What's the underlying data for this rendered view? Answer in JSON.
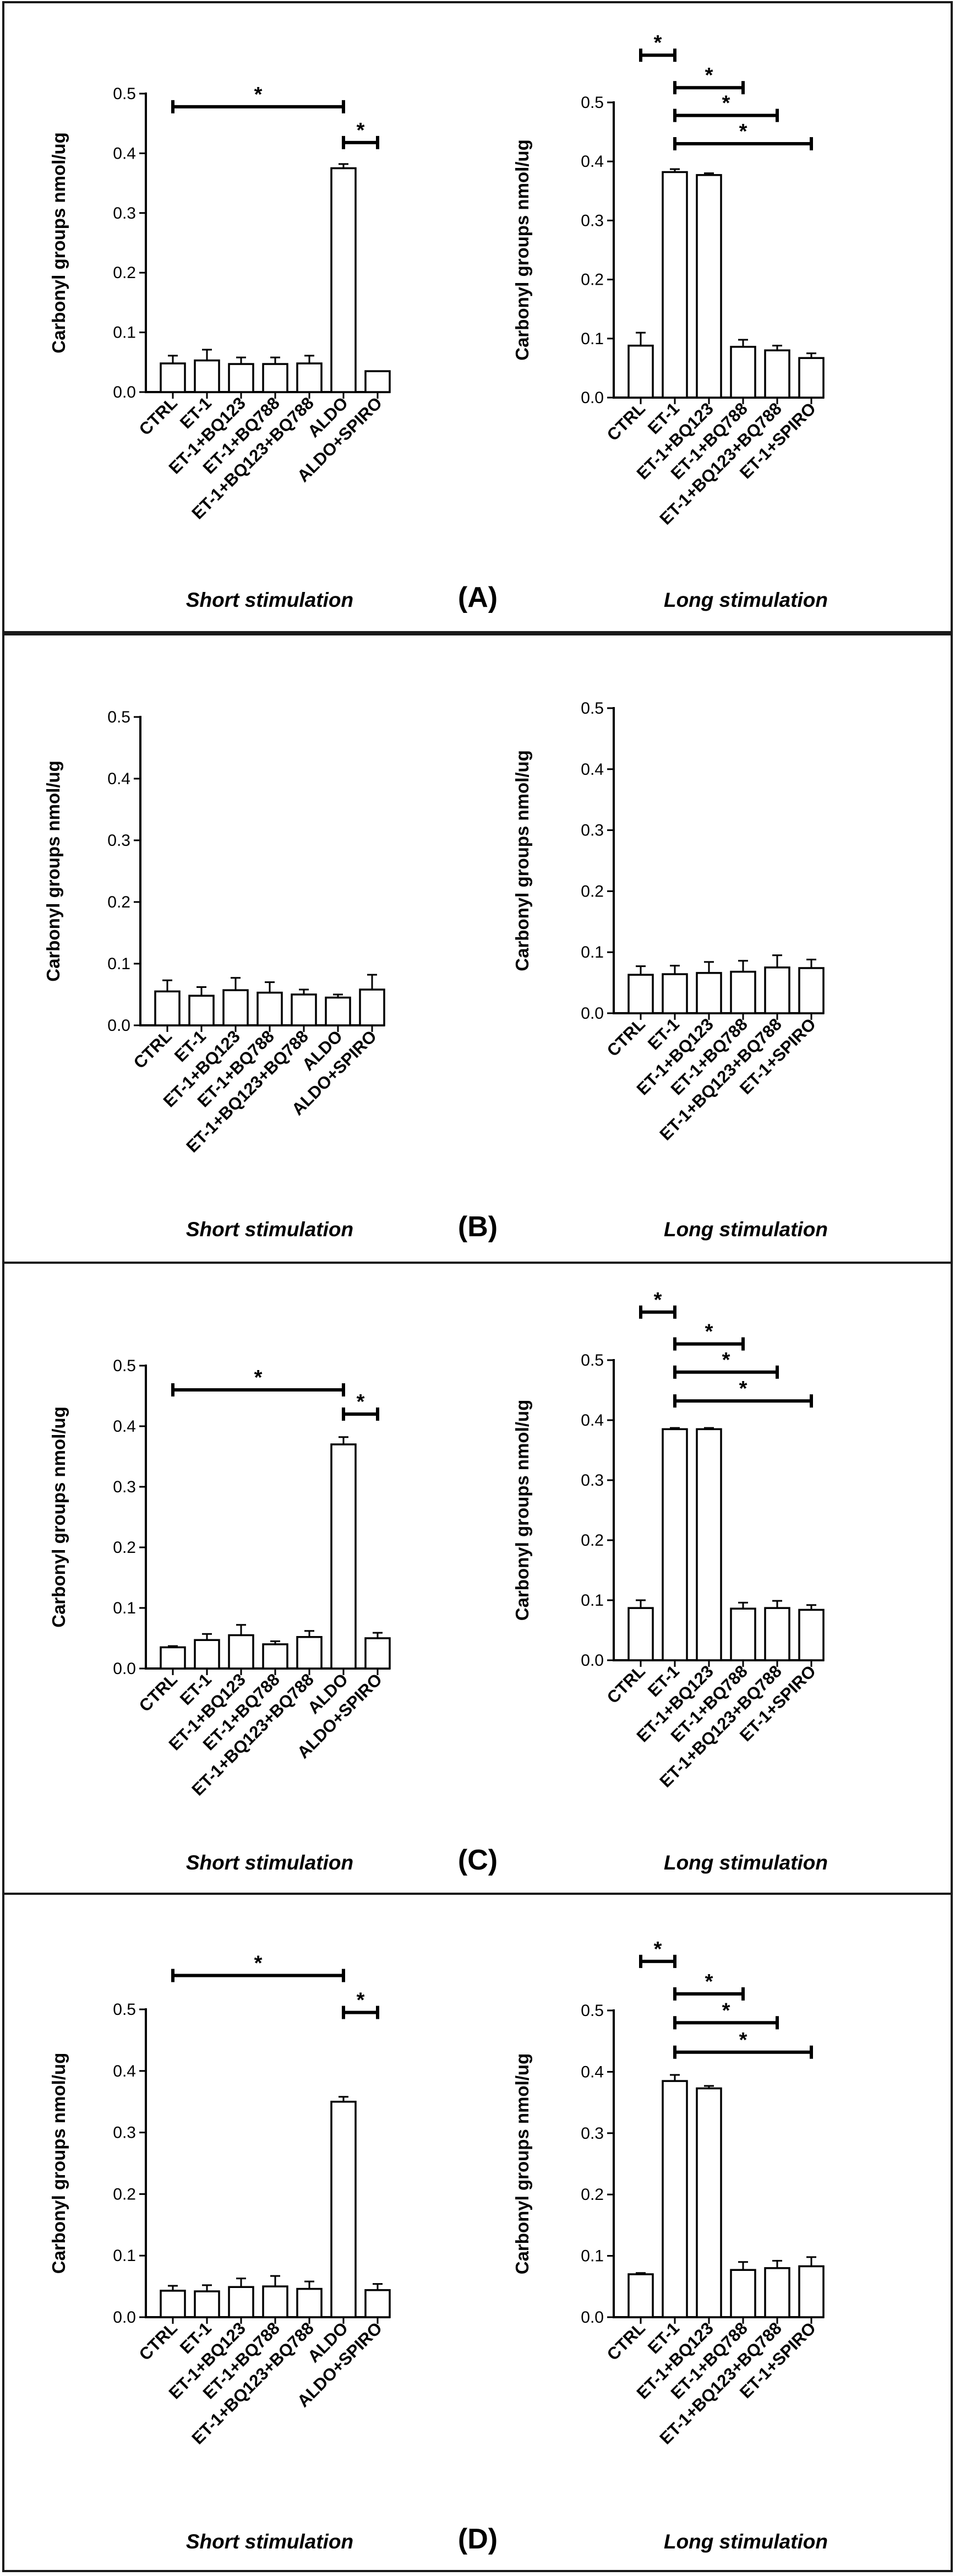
{
  "chart_data": [
    {
      "panel": "(A)",
      "charts": [
        {
          "type": "bar",
          "caption": "Short stimulation",
          "ylabel": "Carbonyl groups nmol/ug",
          "ylim": [
            0,
            0.5
          ],
          "yticks": [
            "0.0",
            "0.1",
            "0.2",
            "0.3",
            "0.4",
            "0.5"
          ],
          "categories": [
            "CTRL",
            "ET-1",
            "ET-1+BQ123",
            "ET-1+BQ788",
            "ET-1+BQ123+BQ788",
            "ALDO",
            "ALDO+SPIRO"
          ],
          "values": [
            0.048,
            0.053,
            0.047,
            0.047,
            0.048,
            0.375,
            0.035
          ],
          "errors": [
            0.013,
            0.018,
            0.011,
            0.011,
            0.013,
            0.007,
            0.0
          ],
          "significance": [
            {
              "from": 0,
              "to": 5,
              "y": 0.478,
              "label": "*"
            },
            {
              "from": 5,
              "to": 6,
              "y": 0.418,
              "label": "*"
            }
          ]
        },
        {
          "type": "bar",
          "caption": "Long stimulation",
          "ylabel": "Carbonyl groups nmol/ug",
          "ylim": [
            0,
            0.5
          ],
          "yticks": [
            "0.0",
            "0.1",
            "0.2",
            "0.3",
            "0.4",
            "0.5"
          ],
          "categories": [
            "CTRL",
            "ET-1",
            "ET-1+BQ123",
            "ET-1+BQ788",
            "ET-1+BQ123+BQ788",
            "ET-1+SPIRO"
          ],
          "values": [
            0.088,
            0.382,
            0.377,
            0.086,
            0.08,
            0.067
          ],
          "errors": [
            0.022,
            0.005,
            0.003,
            0.012,
            0.008,
            0.008
          ],
          "significance": [
            {
              "from": 0,
              "to": 1,
              "y": 0.58,
              "label": "*"
            },
            {
              "from": 1,
              "to": 3,
              "y": 0.525,
              "label": "*"
            },
            {
              "from": 1,
              "to": 4,
              "y": 0.478,
              "label": "*"
            },
            {
              "from": 1,
              "to": 5,
              "y": 0.43,
              "label": "*"
            }
          ]
        }
      ]
    },
    {
      "panel": "(B)",
      "charts": [
        {
          "type": "bar",
          "caption": "Short stimulation",
          "ylabel": "Carbonyl groups nmol/ug",
          "ylim": [
            0,
            0.5
          ],
          "yticks": [
            "0.0",
            "0.1",
            "0.2",
            "0.3",
            "0.4",
            "0.5"
          ],
          "categories": [
            "CTRL",
            "ET-1",
            "ET-1+BQ123",
            "ET-1+BQ788",
            "ET-1+BQ123+BQ788",
            "ALDO",
            "ALDO+SPIRO"
          ],
          "values": [
            0.055,
            0.048,
            0.057,
            0.053,
            0.05,
            0.045,
            0.058
          ],
          "errors": [
            0.018,
            0.014,
            0.02,
            0.017,
            0.008,
            0.005,
            0.024
          ],
          "significance": []
        },
        {
          "type": "bar",
          "caption": "Long stimulation",
          "ylabel": "Carbonyl groups nmol/ug",
          "ylim": [
            0,
            0.5
          ],
          "yticks": [
            "0.0",
            "0.1",
            "0.2",
            "0.3",
            "0.4",
            "0.5"
          ],
          "categories": [
            "CTRL",
            "ET-1",
            "ET-1+BQ123",
            "ET-1+BQ788",
            "ET-1+BQ123+BQ788",
            "ET-1+SPIRO"
          ],
          "values": [
            0.063,
            0.064,
            0.066,
            0.068,
            0.075,
            0.074
          ],
          "errors": [
            0.014,
            0.014,
            0.018,
            0.018,
            0.02,
            0.014
          ],
          "significance": []
        }
      ]
    },
    {
      "panel": "(C)",
      "charts": [
        {
          "type": "bar",
          "caption": "Short stimulation",
          "ylabel": "Carbonyl groups nmol/ug",
          "ylim": [
            0,
            0.5
          ],
          "yticks": [
            "0.0",
            "0.1",
            "0.2",
            "0.3",
            "0.4",
            "0.5"
          ],
          "categories": [
            "CTRL",
            "ET-1",
            "ET-1+BQ123",
            "ET-1+BQ788",
            "ET-1+BQ123+BQ788",
            "ALDO",
            "ALDO+SPIRO"
          ],
          "values": [
            0.035,
            0.047,
            0.055,
            0.04,
            0.052,
            0.37,
            0.05
          ],
          "errors": [
            0.002,
            0.01,
            0.017,
            0.005,
            0.01,
            0.012,
            0.009
          ],
          "significance": [
            {
              "from": 0,
              "to": 5,
              "y": 0.46,
              "label": "*"
            },
            {
              "from": 5,
              "to": 6,
              "y": 0.42,
              "label": "*"
            }
          ]
        },
        {
          "type": "bar",
          "caption": "Long stimulation",
          "ylabel": "Carbonyl groups nmol/ug",
          "ylim": [
            0,
            0.5
          ],
          "yticks": [
            "0.0",
            "0.1",
            "0.2",
            "0.3",
            "0.4",
            "0.5"
          ],
          "categories": [
            "CTRL",
            "ET-1",
            "ET-1+BQ123",
            "ET-1+BQ788",
            "ET-1+BQ123+BQ788",
            "ET-1+SPIRO"
          ],
          "values": [
            0.087,
            0.385,
            0.385,
            0.086,
            0.087,
            0.084
          ],
          "errors": [
            0.013,
            0.002,
            0.002,
            0.01,
            0.012,
            0.008
          ],
          "significance": [
            {
              "from": 0,
              "to": 1,
              "y": 0.58,
              "label": "*"
            },
            {
              "from": 1,
              "to": 3,
              "y": 0.527,
              "label": "*"
            },
            {
              "from": 1,
              "to": 4,
              "y": 0.48,
              "label": "*"
            },
            {
              "from": 1,
              "to": 5,
              "y": 0.432,
              "label": "*"
            }
          ]
        }
      ]
    },
    {
      "panel": "(D)",
      "charts": [
        {
          "type": "bar",
          "caption": "Short stimulation",
          "ylabel": "Carbonyl groups nmol/ug",
          "ylim": [
            0,
            0.5
          ],
          "yticks": [
            "0.0",
            "0.1",
            "0.2",
            "0.3",
            "0.4",
            "0.5"
          ],
          "categories": [
            "CTRL",
            "ET-1",
            "ET-1+BQ123",
            "ET-1+BQ788",
            "ET-1+BQ123+BQ788",
            "ALDO",
            "ALDO+SPIRO"
          ],
          "values": [
            0.043,
            0.042,
            0.049,
            0.05,
            0.046,
            0.35,
            0.044
          ],
          "errors": [
            0.008,
            0.01,
            0.014,
            0.017,
            0.012,
            0.008,
            0.01
          ],
          "significance": [
            {
              "from": 0,
              "to": 5,
              "y": 0.555,
              "label": "*"
            },
            {
              "from": 5,
              "to": 6,
              "y": 0.495,
              "label": "*"
            }
          ]
        },
        {
          "type": "bar",
          "caption": "Long stimulation",
          "ylabel": "Carbonyl groups nmol/ug",
          "ylim": [
            0,
            0.5
          ],
          "yticks": [
            "0.0",
            "0.1",
            "0.2",
            "0.3",
            "0.4",
            "0.5"
          ],
          "categories": [
            "CTRL",
            "ET-1",
            "ET-1+BQ123",
            "ET-1+BQ788",
            "ET-1+BQ123+BQ788",
            "ET-1+SPIRO"
          ],
          "values": [
            0.07,
            0.385,
            0.373,
            0.077,
            0.08,
            0.083
          ],
          "errors": [
            0.002,
            0.01,
            0.004,
            0.013,
            0.012,
            0.015
          ],
          "significance": [
            {
              "from": 0,
              "to": 1,
              "y": 0.58,
              "label": "*"
            },
            {
              "from": 1,
              "to": 3,
              "y": 0.527,
              "label": "*"
            },
            {
              "from": 1,
              "to": 4,
              "y": 0.48,
              "label": "*"
            },
            {
              "from": 1,
              "to": 5,
              "y": 0.432,
              "label": "*"
            }
          ]
        }
      ]
    }
  ]
}
